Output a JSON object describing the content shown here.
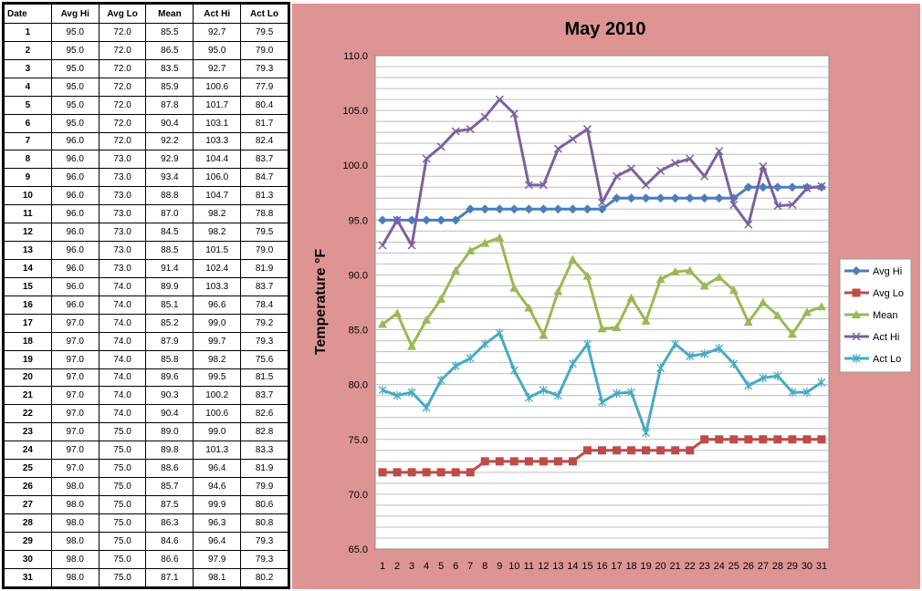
{
  "table": {
    "headers": [
      "Date",
      "Avg Hi",
      "Avg Lo",
      "Mean",
      "Act Hi",
      "Act Lo"
    ],
    "rows": [
      [
        "1",
        "95.0",
        "72.0",
        "85.5",
        "92.7",
        "79.5"
      ],
      [
        "2",
        "95.0",
        "72.0",
        "86.5",
        "95.0",
        "79.0"
      ],
      [
        "3",
        "95.0",
        "72.0",
        "83.5",
        "92.7",
        "79.3"
      ],
      [
        "4",
        "95.0",
        "72.0",
        "85.9",
        "100.6",
        "77.9"
      ],
      [
        "5",
        "95.0",
        "72.0",
        "87.8",
        "101.7",
        "80.4"
      ],
      [
        "6",
        "95.0",
        "72.0",
        "90.4",
        "103.1",
        "81.7"
      ],
      [
        "7",
        "96.0",
        "72.0",
        "92.2",
        "103.3",
        "82.4"
      ],
      [
        "8",
        "96.0",
        "73.0",
        "92.9",
        "104.4",
        "83.7"
      ],
      [
        "9",
        "96.0",
        "73.0",
        "93.4",
        "106.0",
        "84.7"
      ],
      [
        "10",
        "96.0",
        "73.0",
        "88.8",
        "104.7",
        "81.3"
      ],
      [
        "11",
        "96.0",
        "73.0",
        "87.0",
        "98.2",
        "78.8"
      ],
      [
        "12",
        "96.0",
        "73.0",
        "84.5",
        "98.2",
        "79.5"
      ],
      [
        "13",
        "96.0",
        "73.0",
        "88.5",
        "101.5",
        "79.0"
      ],
      [
        "14",
        "96.0",
        "73.0",
        "91.4",
        "102.4",
        "81.9"
      ],
      [
        "15",
        "96.0",
        "74.0",
        "89.9",
        "103.3",
        "83.7"
      ],
      [
        "16",
        "96.0",
        "74.0",
        "85.1",
        "96.6",
        "78.4"
      ],
      [
        "17",
        "97.0",
        "74.0",
        "85.2",
        "99.0",
        "79.2"
      ],
      [
        "18",
        "97.0",
        "74.0",
        "87.9",
        "99.7",
        "79.3"
      ],
      [
        "19",
        "97.0",
        "74.0",
        "85.8",
        "98.2",
        "75.6"
      ],
      [
        "20",
        "97.0",
        "74.0",
        "89.6",
        "99.5",
        "81.5"
      ],
      [
        "21",
        "97.0",
        "74.0",
        "90.3",
        "100.2",
        "83.7"
      ],
      [
        "22",
        "97.0",
        "74.0",
        "90.4",
        "100.6",
        "82.6"
      ],
      [
        "23",
        "97.0",
        "75.0",
        "89.0",
        "99.0",
        "82.8"
      ],
      [
        "24",
        "97.0",
        "75.0",
        "89.8",
        "101.3",
        "83.3"
      ],
      [
        "25",
        "97.0",
        "75.0",
        "88.6",
        "96.4",
        "81.9"
      ],
      [
        "26",
        "98.0",
        "75.0",
        "85.7",
        "94.6",
        "79.9"
      ],
      [
        "27",
        "98.0",
        "75.0",
        "87.5",
        "99.9",
        "80.6"
      ],
      [
        "28",
        "98.0",
        "75.0",
        "86.3",
        "96.3",
        "80.8"
      ],
      [
        "29",
        "98.0",
        "75.0",
        "84.6",
        "96.4",
        "79.3"
      ],
      [
        "30",
        "98.0",
        "75.0",
        "86.6",
        "97.9",
        "79.3"
      ],
      [
        "31",
        "98.0",
        "75.0",
        "87.1",
        "98.1",
        "80.2"
      ]
    ]
  },
  "chart_data": {
    "type": "line",
    "title": "May 2010",
    "xlabel": "",
    "ylabel": "Temperature °F",
    "ylim": [
      65,
      110
    ],
    "y_ticks": [
      "65.0",
      "70.0",
      "75.0",
      "80.0",
      "85.0",
      "90.0",
      "95.0",
      "100.0",
      "105.0",
      "110.0"
    ],
    "x": [
      1,
      2,
      3,
      4,
      5,
      6,
      7,
      8,
      9,
      10,
      11,
      12,
      13,
      14,
      15,
      16,
      17,
      18,
      19,
      20,
      21,
      22,
      23,
      24,
      25,
      26,
      27,
      28,
      29,
      30,
      31
    ],
    "grid": true,
    "legend_position": "right",
    "series": [
      {
        "name": "Avg Hi",
        "color": "#4a7ebb",
        "marker": "diamond",
        "values": [
          95,
          95,
          95,
          95,
          95,
          95,
          96,
          96,
          96,
          96,
          96,
          96,
          96,
          96,
          96,
          96,
          97,
          97,
          97,
          97,
          97,
          97,
          97,
          97,
          97,
          98,
          98,
          98,
          98,
          98,
          98
        ]
      },
      {
        "name": "Avg Lo",
        "color": "#be4b48",
        "marker": "square",
        "values": [
          72,
          72,
          72,
          72,
          72,
          72,
          72,
          73,
          73,
          73,
          73,
          73,
          73,
          73,
          74,
          74,
          74,
          74,
          74,
          74,
          74,
          74,
          75,
          75,
          75,
          75,
          75,
          75,
          75,
          75,
          75
        ]
      },
      {
        "name": "Mean",
        "color": "#98b954",
        "marker": "triangle",
        "values": [
          85.5,
          86.5,
          83.5,
          85.9,
          87.8,
          90.4,
          92.2,
          92.9,
          93.4,
          88.8,
          87.0,
          84.5,
          88.5,
          91.4,
          89.9,
          85.1,
          85.2,
          87.9,
          85.8,
          89.6,
          90.3,
          90.4,
          89.0,
          89.8,
          88.6,
          85.7,
          87.5,
          86.3,
          84.6,
          86.6,
          87.1
        ]
      },
      {
        "name": "Act Hi",
        "color": "#7d60a0",
        "marker": "x",
        "values": [
          92.7,
          95.0,
          92.7,
          100.6,
          101.7,
          103.1,
          103.3,
          104.4,
          106.0,
          104.7,
          98.2,
          98.2,
          101.5,
          102.4,
          103.3,
          96.6,
          99.0,
          99.7,
          98.2,
          99.5,
          100.2,
          100.6,
          99.0,
          101.3,
          96.4,
          94.6,
          99.9,
          96.3,
          96.4,
          97.9,
          98.1
        ]
      },
      {
        "name": "Act Lo",
        "color": "#46aac5",
        "marker": "star",
        "values": [
          79.5,
          79.0,
          79.3,
          77.9,
          80.4,
          81.7,
          82.4,
          83.7,
          84.7,
          81.3,
          78.8,
          79.5,
          79.0,
          81.9,
          83.7,
          78.4,
          79.2,
          79.3,
          75.6,
          81.5,
          83.7,
          82.6,
          82.8,
          83.3,
          81.9,
          79.9,
          80.6,
          80.8,
          79.3,
          79.3,
          80.2
        ]
      }
    ]
  }
}
